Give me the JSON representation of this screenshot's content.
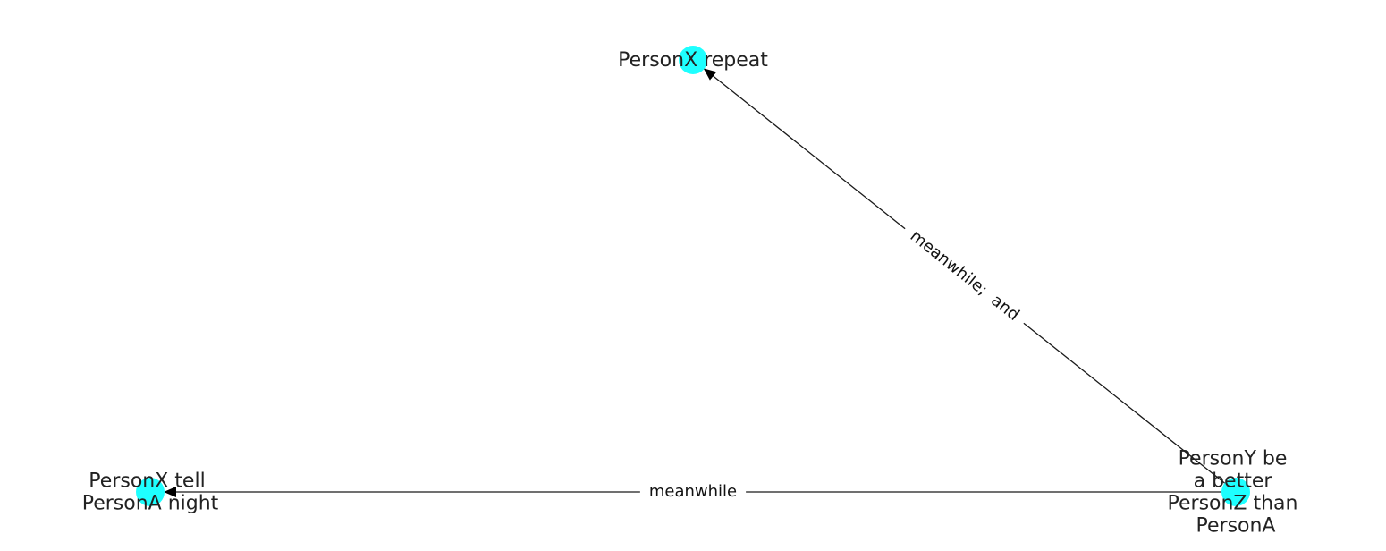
{
  "colors": {
    "node_fill": "#1effff",
    "edge_stroke": "#1a1a1a",
    "arrowhead": "#000000",
    "label_text": "#222222",
    "background": "#ffffff"
  },
  "nodes": [
    {
      "id": "n_repeat",
      "lines": [
        "PersonX repeat"
      ]
    },
    {
      "id": "n_tell",
      "lines": [
        "PersonX tell",
        "PersonA night"
      ]
    },
    {
      "id": "n_better",
      "lines": [
        "PersonY be",
        "a better",
        "PersonZ than",
        "PersonA"
      ]
    }
  ],
  "edges": [
    {
      "id": "e1",
      "source": "n_better",
      "target": "n_repeat",
      "label": "meanwhile;  and"
    },
    {
      "id": "e2",
      "source": "n_better",
      "target": "n_tell",
      "label": "meanwhile"
    }
  ]
}
